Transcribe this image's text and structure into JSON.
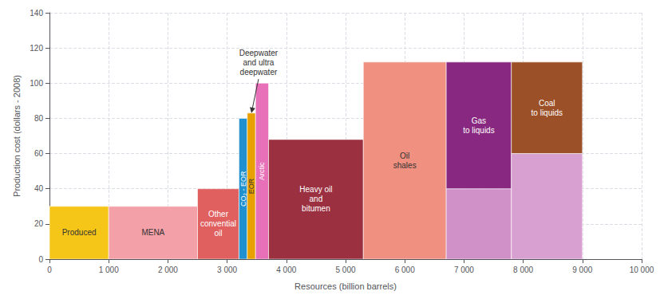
{
  "chart_data": {
    "type": "bar",
    "xlabel": "Resources (billion barrels)",
    "ylabel": "Production cost (dollars - 2008)",
    "xlim": [
      0,
      10000
    ],
    "ylim": [
      0,
      140
    ],
    "xticks": [
      0,
      {
        "value": 1000,
        "label": "1 000"
      },
      {
        "value": 2000,
        "label": "2 000"
      },
      {
        "value": 3000,
        "label": "3 000"
      },
      {
        "value": 4000,
        "label": "4 000"
      },
      {
        "value": 5000,
        "label": "5 000"
      },
      {
        "value": 6000,
        "label": "6 000"
      },
      {
        "value": 7000,
        "label": "7 000"
      },
      {
        "value": 8000,
        "label": "8 000"
      },
      {
        "value": 9000,
        "label": "9 000"
      },
      {
        "value": 10000,
        "label": "10 000"
      }
    ],
    "yticks": [
      0,
      20,
      40,
      60,
      80,
      100,
      120,
      140
    ],
    "grid": true,
    "bars": [
      {
        "label": "Produced",
        "x_start": 0,
        "x_end": 1000,
        "bottom": 0,
        "top": 30,
        "color": "#F5C518"
      },
      {
        "label": "MENA",
        "x_start": 1000,
        "x_end": 2500,
        "bottom": 0,
        "top": 30,
        "color": "#F4A0A8"
      },
      {
        "label": "Other\nconvential\noil",
        "x_start": 2500,
        "x_end": 3200,
        "bottom": 0,
        "top": 40,
        "color": "#E06060"
      },
      {
        "label": "CO₂ - EOR",
        "x_start": 3200,
        "x_end": 3340,
        "bottom": 0,
        "top": 80,
        "color": "#2090D0"
      },
      {
        "label": "EOR",
        "x_start": 3340,
        "x_end": 3480,
        "bottom": 0,
        "top": 83,
        "color": "#E8A000"
      },
      {
        "label": "Arctic",
        "x_start": 3480,
        "x_end": 3700,
        "bottom": 0,
        "top": 100,
        "color": "#E870B8"
      },
      {
        "label": "Heavy oil\nand\nbitumen",
        "x_start": 3700,
        "x_end": 5300,
        "bottom": 0,
        "top": 68,
        "color": "#9B3040"
      },
      {
        "label": "Oil\nshales",
        "x_start": 5300,
        "x_end": 6700,
        "bottom": 0,
        "top": 112,
        "color": "#F09080"
      },
      {
        "label": null,
        "x_start": 6700,
        "x_end": 7800,
        "bottom": 0,
        "top": 40,
        "color": "#D090C8"
      },
      {
        "label": "Gas\nto liquids",
        "x_start": 6700,
        "x_end": 7800,
        "bottom": 40,
        "top": 112,
        "color": "#882880"
      },
      {
        "label": null,
        "x_start": 7800,
        "x_end": 9000,
        "bottom": 0,
        "top": 60,
        "color": "#D8A0D0"
      },
      {
        "label": "Coal\nto liquids",
        "x_start": 7800,
        "x_end": 9000,
        "bottom": 60,
        "top": 112,
        "color": "#9B5028"
      }
    ],
    "annotations": [
      {
        "text": "Deepwater\nand ultra\ndeepwater",
        "x": 3530,
        "y": 120,
        "arrow_x": 3410,
        "arrow_y": 83
      }
    ]
  }
}
